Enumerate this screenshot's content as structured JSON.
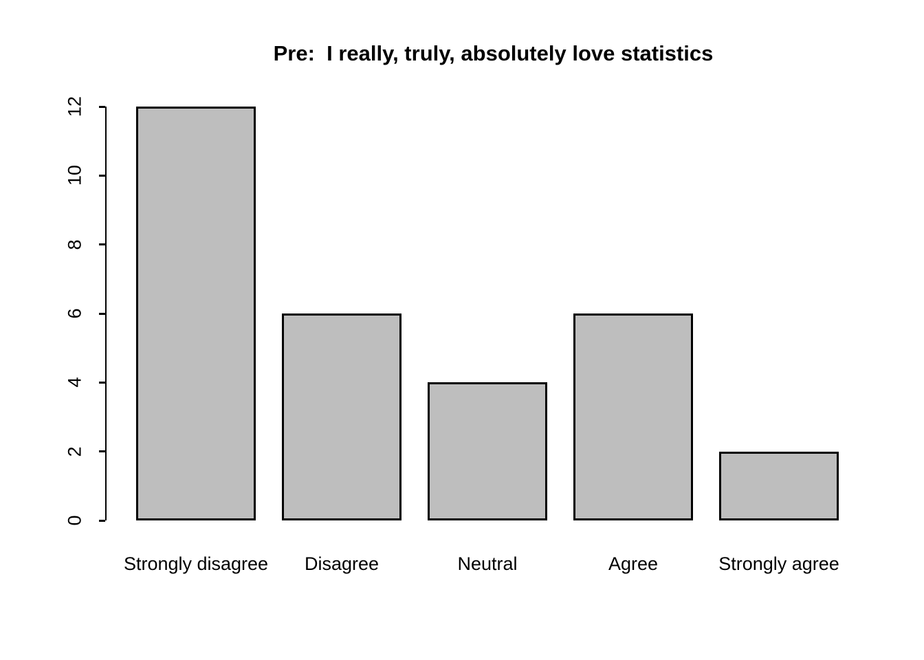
{
  "chart_data": {
    "type": "bar",
    "title": "Pre:  I really, truly, absolutely love statistics",
    "categories": [
      "Strongly disagree",
      "Disagree",
      "Neutral",
      "Agree",
      "Strongly agree"
    ],
    "values": [
      12,
      6,
      4,
      6,
      2
    ],
    "xlabel": "",
    "ylabel": "",
    "ylim": [
      0,
      12
    ],
    "yticks": [
      0,
      2,
      4,
      6,
      8,
      10,
      12
    ],
    "grid": "off",
    "legend": "none",
    "bar_fill": "#bebebe",
    "bar_border": "#000000",
    "background": "#ffffff",
    "text_color": "#000000"
  }
}
